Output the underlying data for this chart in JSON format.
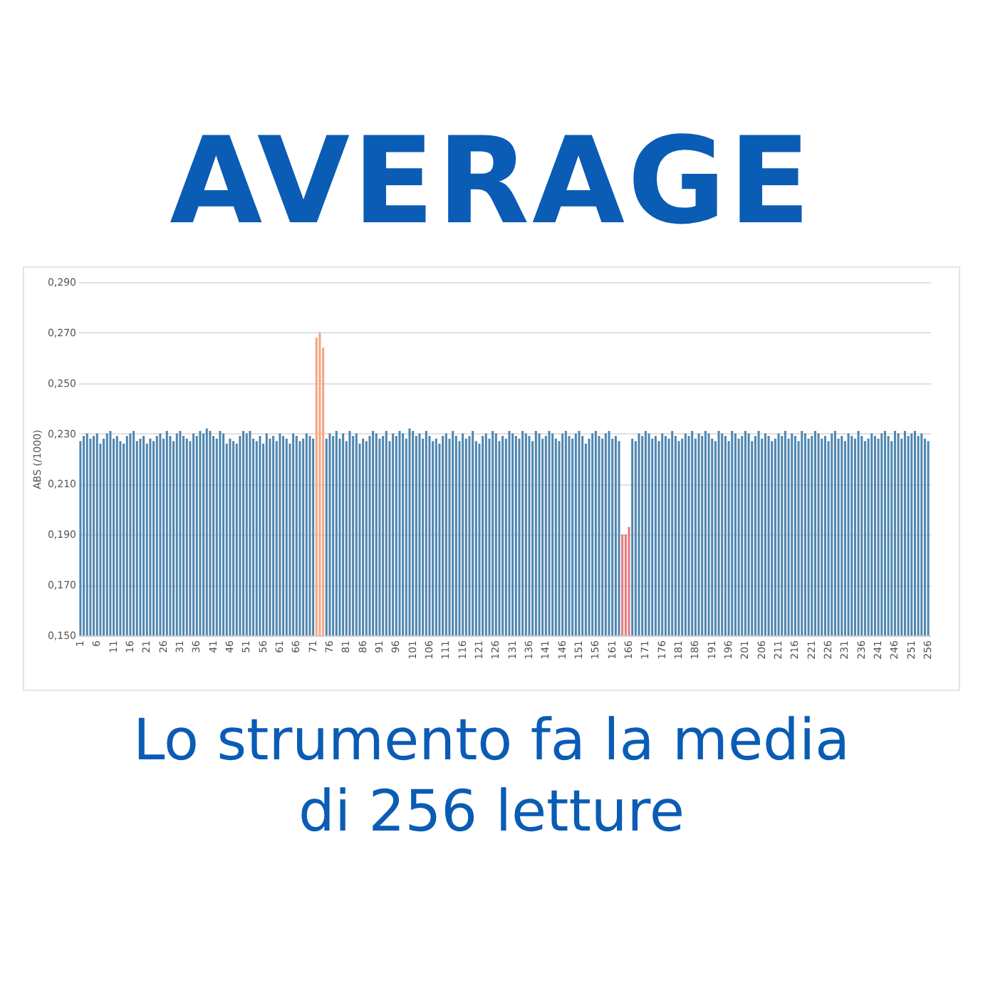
{
  "chart_data": {
    "type": "bar",
    "title": "AVERAGE",
    "ylabel": "ABS (/1000)",
    "annotations": [
      "Lo strumento fa la media di 256 letture"
    ],
    "categories": [
      "1",
      null,
      null,
      null,
      null,
      "6",
      null,
      null,
      null,
      null,
      "11",
      null,
      null,
      null,
      null,
      "16",
      null,
      null,
      null,
      null,
      "21",
      null,
      null,
      null,
      null,
      "26",
      null,
      null,
      null,
      null,
      "31",
      null,
      null,
      null,
      null,
      "36",
      null,
      null,
      null,
      null,
      "41",
      null,
      null,
      null,
      null,
      "46",
      null,
      null,
      null,
      null,
      "51",
      null,
      null,
      null,
      null,
      "56",
      null,
      null,
      null,
      null,
      "61",
      null,
      null,
      null,
      null,
      "66",
      null,
      null,
      null,
      null,
      "71",
      null,
      null,
      null,
      null,
      "76",
      null,
      null,
      null,
      null,
      "81",
      null,
      null,
      null,
      null,
      "86",
      null,
      null,
      null,
      null,
      "91",
      null,
      null,
      null,
      null,
      "96",
      null,
      null,
      null,
      null,
      "101",
      null,
      null,
      null,
      null,
      "106",
      null,
      null,
      null,
      null,
      "111",
      null,
      null,
      null,
      null,
      "116",
      null,
      null,
      null,
      null,
      "121",
      null,
      null,
      null,
      null,
      "126",
      null,
      null,
      null,
      null,
      "131",
      null,
      null,
      null,
      null,
      "136",
      null,
      null,
      null,
      null,
      "141",
      null,
      null,
      null,
      null,
      "146",
      null,
      null,
      null,
      null,
      "151",
      null,
      null,
      null,
      null,
      "156",
      null,
      null,
      null,
      null,
      "161",
      null,
      null,
      null,
      null,
      "166",
      null,
      null,
      null,
      null,
      "171",
      null,
      null,
      null,
      null,
      "176",
      null,
      null,
      null,
      null,
      "181",
      null,
      null,
      null,
      null,
      "186",
      null,
      null,
      null,
      null,
      "191",
      null,
      null,
      null,
      null,
      "196",
      null,
      null,
      null,
      null,
      "201",
      null,
      null,
      null,
      null,
      "206",
      null,
      null,
      null,
      null,
      "211",
      null,
      null,
      null,
      null,
      "216",
      null,
      null,
      null,
      null,
      "221",
      null,
      null,
      null,
      null,
      "226",
      null,
      null,
      null,
      null,
      "231",
      null,
      null,
      null,
      null,
      "236",
      null,
      null,
      null,
      null,
      "241",
      null,
      null,
      null,
      null,
      "246",
      null,
      null,
      null,
      null,
      "251",
      null,
      null,
      null,
      null,
      "256"
    ],
    "values": [
      0.227,
      0.229,
      0.23,
      0.228,
      0.229,
      0.23,
      0.226,
      0.228,
      0.23,
      0.231,
      0.228,
      0.229,
      0.227,
      0.226,
      0.229,
      0.23,
      0.231,
      0.227,
      0.228,
      0.229,
      0.226,
      0.228,
      0.227,
      0.229,
      0.23,
      0.228,
      0.231,
      0.229,
      0.227,
      0.23,
      0.231,
      0.229,
      0.228,
      0.227,
      0.23,
      0.229,
      0.231,
      0.23,
      0.232,
      0.231,
      0.229,
      0.228,
      0.231,
      0.23,
      0.226,
      0.228,
      0.227,
      0.226,
      0.229,
      0.231,
      0.23,
      0.231,
      0.228,
      0.227,
      0.229,
      0.226,
      0.23,
      0.228,
      0.229,
      0.227,
      0.23,
      0.229,
      0.228,
      0.226,
      0.23,
      0.229,
      0.227,
      0.228,
      0.23,
      0.229,
      0.228,
      0.268,
      0.27,
      0.264,
      0.228,
      0.23,
      0.229,
      0.231,
      0.228,
      0.23,
      0.227,
      0.231,
      0.229,
      0.23,
      0.226,
      0.228,
      0.227,
      0.229,
      0.231,
      0.23,
      0.228,
      0.229,
      0.231,
      0.227,
      0.23,
      0.229,
      0.231,
      0.23,
      0.228,
      0.232,
      0.231,
      0.229,
      0.23,
      0.228,
      0.231,
      0.229,
      0.227,
      0.228,
      0.226,
      0.229,
      0.23,
      0.228,
      0.231,
      0.229,
      0.227,
      0.23,
      0.228,
      0.229,
      0.231,
      0.227,
      0.226,
      0.229,
      0.23,
      0.228,
      0.231,
      0.23,
      0.227,
      0.229,
      0.228,
      0.231,
      0.23,
      0.229,
      0.228,
      0.231,
      0.23,
      0.229,
      0.227,
      0.231,
      0.23,
      0.228,
      0.229,
      0.231,
      0.23,
      0.228,
      0.227,
      0.23,
      0.231,
      0.229,
      0.228,
      0.23,
      0.231,
      0.229,
      0.226,
      0.228,
      0.23,
      0.231,
      0.229,
      0.228,
      0.23,
      0.231,
      0.228,
      0.229,
      0.227,
      0.19,
      0.19,
      0.193,
      0.228,
      0.227,
      0.23,
      0.229,
      0.231,
      0.23,
      0.228,
      0.229,
      0.227,
      0.23,
      0.229,
      0.228,
      0.231,
      0.229,
      0.227,
      0.228,
      0.23,
      0.229,
      0.231,
      0.228,
      0.23,
      0.229,
      0.231,
      0.23,
      0.228,
      0.227,
      0.231,
      0.23,
      0.229,
      0.227,
      0.231,
      0.23,
      0.228,
      0.229,
      0.231,
      0.23,
      0.227,
      0.229,
      0.231,
      0.228,
      0.23,
      0.229,
      0.227,
      0.228,
      0.23,
      0.229,
      0.231,
      0.228,
      0.23,
      0.229,
      0.227,
      0.231,
      0.23,
      0.228,
      0.229,
      0.231,
      0.23,
      0.228,
      0.229,
      0.227,
      0.23,
      0.231,
      0.228,
      0.229,
      0.227,
      0.23,
      0.229,
      0.228,
      0.231,
      0.229,
      0.227,
      0.228,
      0.23,
      0.229,
      0.228,
      0.23,
      0.231,
      0.229,
      0.227,
      0.231,
      0.23,
      0.228,
      0.231,
      0.229,
      0.23,
      0.231,
      0.229,
      0.23,
      0.228,
      0.227
    ],
    "colors": [
      "#4f86b0",
      "#4f86b0",
      "#4f86b0",
      "#4f86b0",
      "#4f86b0",
      "#4f86b0",
      "#4f86b0",
      "#4f86b0",
      "#4f86b0",
      "#4f86b0",
      "#4f86b0",
      "#4f86b0",
      "#4f86b0",
      "#4f86b0",
      "#4f86b0",
      "#4f86b0",
      "#4f86b0",
      "#4f86b0",
      "#4f86b0",
      "#4f86b0",
      "#4f86b0",
      "#4f86b0",
      "#4f86b0",
      "#4f86b0",
      "#4f86b0",
      "#4f86b0",
      "#4f86b0",
      "#4f86b0",
      "#4f86b0",
      "#4f86b0",
      "#4f86b0",
      "#4f86b0",
      "#4f86b0",
      "#4f86b0",
      "#4f86b0",
      "#4f86b0",
      "#4f86b0",
      "#4f86b0",
      "#4f86b0",
      "#4f86b0",
      "#4f86b0",
      "#4f86b0",
      "#4f86b0",
      "#4f86b0",
      "#4f86b0",
      "#4f86b0",
      "#4f86b0",
      "#4f86b0",
      "#4f86b0",
      "#4f86b0",
      "#4f86b0",
      "#4f86b0",
      "#4f86b0",
      "#4f86b0",
      "#4f86b0",
      "#4f86b0",
      "#4f86b0",
      "#4f86b0",
      "#4f86b0",
      "#4f86b0",
      "#4f86b0",
      "#4f86b0",
      "#4f86b0",
      "#4f86b0",
      "#4f86b0",
      "#4f86b0",
      "#4f86b0",
      "#4f86b0",
      "#4f86b0",
      "#4f86b0",
      "#4f86b0",
      "#f4a582",
      "#f4a582",
      "#f4a582",
      "#4f86b0",
      "#4f86b0",
      "#4f86b0",
      "#4f86b0",
      "#4f86b0",
      "#4f86b0",
      "#4f86b0",
      "#4f86b0",
      "#4f86b0",
      "#4f86b0",
      "#4f86b0",
      "#4f86b0",
      "#4f86b0",
      "#4f86b0",
      "#4f86b0",
      "#4f86b0",
      "#4f86b0",
      "#4f86b0",
      "#4f86b0",
      "#4f86b0",
      "#4f86b0",
      "#4f86b0",
      "#4f86b0",
      "#4f86b0",
      "#4f86b0",
      "#4f86b0",
      "#4f86b0",
      "#4f86b0",
      "#4f86b0",
      "#4f86b0",
      "#4f86b0",
      "#4f86b0",
      "#4f86b0",
      "#4f86b0",
      "#4f86b0",
      "#4f86b0",
      "#4f86b0",
      "#4f86b0",
      "#4f86b0",
      "#4f86b0",
      "#4f86b0",
      "#4f86b0",
      "#4f86b0",
      "#4f86b0",
      "#4f86b0",
      "#4f86b0",
      "#4f86b0",
      "#4f86b0",
      "#4f86b0",
      "#4f86b0",
      "#4f86b0",
      "#4f86b0",
      "#4f86b0",
      "#4f86b0",
      "#4f86b0",
      "#4f86b0",
      "#4f86b0",
      "#4f86b0",
      "#4f86b0",
      "#4f86b0",
      "#4f86b0",
      "#4f86b0",
      "#4f86b0",
      "#4f86b0",
      "#4f86b0",
      "#4f86b0",
      "#4f86b0",
      "#4f86b0",
      "#4f86b0",
      "#4f86b0",
      "#4f86b0",
      "#4f86b0",
      "#4f86b0",
      "#4f86b0",
      "#4f86b0",
      "#4f86b0",
      "#4f86b0",
      "#4f86b0",
      "#4f86b0",
      "#4f86b0",
      "#4f86b0",
      "#4f86b0",
      "#4f86b0",
      "#4f86b0",
      "#4f86b0",
      "#4f86b0",
      "#4f86b0",
      "#4f86b0",
      "#4f86b0",
      "#e8787a",
      "#e8787a",
      "#e8787a",
      "#4f86b0",
      "#4f86b0",
      "#4f86b0",
      "#4f86b0",
      "#4f86b0",
      "#4f86b0",
      "#4f86b0",
      "#4f86b0",
      "#4f86b0",
      "#4f86b0",
      "#4f86b0",
      "#4f86b0",
      "#4f86b0",
      "#4f86b0",
      "#4f86b0",
      "#4f86b0",
      "#4f86b0",
      "#4f86b0",
      "#4f86b0",
      "#4f86b0",
      "#4f86b0",
      "#4f86b0",
      "#4f86b0",
      "#4f86b0",
      "#4f86b0",
      "#4f86b0",
      "#4f86b0",
      "#4f86b0",
      "#4f86b0",
      "#4f86b0",
      "#4f86b0",
      "#4f86b0",
      "#4f86b0",
      "#4f86b0",
      "#4f86b0",
      "#4f86b0",
      "#4f86b0",
      "#4f86b0",
      "#4f86b0",
      "#4f86b0",
      "#4f86b0",
      "#4f86b0",
      "#4f86b0",
      "#4f86b0",
      "#4f86b0",
      "#4f86b0",
      "#4f86b0",
      "#4f86b0",
      "#4f86b0",
      "#4f86b0",
      "#4f86b0",
      "#4f86b0",
      "#4f86b0",
      "#4f86b0",
      "#4f86b0",
      "#4f86b0",
      "#4f86b0",
      "#4f86b0",
      "#4f86b0",
      "#4f86b0",
      "#4f86b0",
      "#4f86b0",
      "#4f86b0",
      "#4f86b0",
      "#4f86b0",
      "#4f86b0",
      "#4f86b0",
      "#4f86b0",
      "#4f86b0",
      "#4f86b0",
      "#4f86b0",
      "#4f86b0",
      "#4f86b0",
      "#4f86b0",
      "#4f86b0",
      "#4f86b0",
      "#4f86b0",
      "#4f86b0",
      "#4f86b0",
      "#4f86b0",
      "#4f86b0",
      "#4f86b0",
      "#4f86b0",
      "#4f86b0",
      "#4f86b0",
      "#4f86b0",
      "#4f86b0",
      "#4f86b0",
      "#4f86b0",
      "#4f86b0"
    ],
    "ylim": [
      0.15,
      0.29
    ],
    "yticks": [
      {
        "value": 0.15,
        "label": "0,150"
      },
      {
        "value": 0.17,
        "label": "0,170"
      },
      {
        "value": 0.19,
        "label": "0,190"
      },
      {
        "value": 0.21,
        "label": "0,210"
      },
      {
        "value": 0.23,
        "label": "0,230"
      },
      {
        "value": 0.25,
        "label": "0,250"
      },
      {
        "value": 0.27,
        "label": "0,270"
      },
      {
        "value": 0.29,
        "label": "0,290"
      }
    ],
    "grid": "y"
  }
}
